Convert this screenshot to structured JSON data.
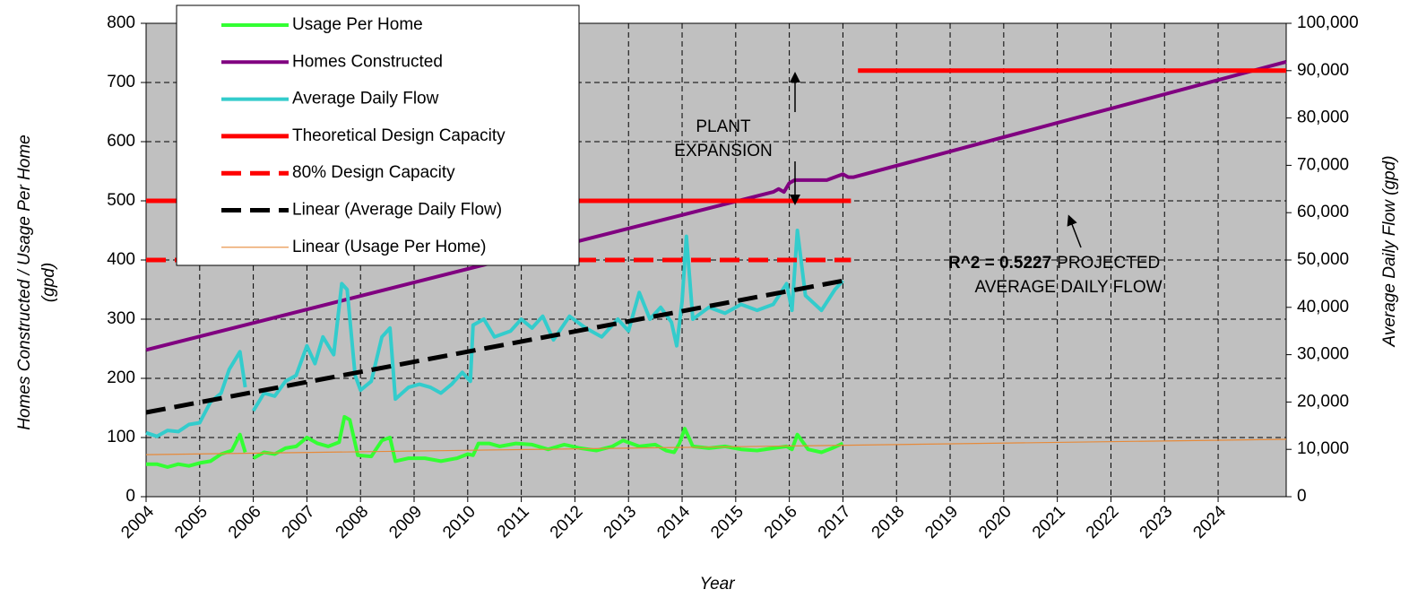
{
  "chart_data": {
    "type": "line",
    "x_label": "Year",
    "y_label": [
      "Homes Constructed / Usage Per Home",
      "(gpd)"
    ],
    "y2_label": "Average Daily Flow (gpd)",
    "xlim": [
      2004,
      2025.27
    ],
    "xticks": [
      2004,
      2005,
      2006,
      2007,
      2008,
      2009,
      2010,
      2011,
      2012,
      2013,
      2014,
      2015,
      2016,
      2017,
      2018,
      2019,
      2020,
      2021,
      2022,
      2023,
      2024
    ],
    "ylim": [
      0,
      800
    ],
    "yticks": [
      0,
      100,
      200,
      300,
      400,
      500,
      600,
      700,
      800
    ],
    "y2lim": [
      0,
      100000
    ],
    "y2ticks": [
      0,
      {
        "value": 10000,
        "label": "10,000"
      },
      {
        "value": 20000,
        "label": "20,000"
      },
      {
        "value": 30000,
        "label": "30,000"
      },
      {
        "value": 40000,
        "label": "40,000"
      },
      {
        "value": 50000,
        "label": "50,000"
      },
      {
        "value": 60000,
        "label": "60,000"
      },
      {
        "value": 70000,
        "label": "70,000"
      },
      {
        "value": 80000,
        "label": "80,000"
      },
      {
        "value": 90000,
        "label": "90,000"
      },
      {
        "value": 100000,
        "label": "100,000"
      }
    ],
    "grid": true,
    "background": "#c0c0c0",
    "legend": "upper left",
    "annotations": {
      "plant_expansion": [
        "PLANT",
        "EXPANSION"
      ],
      "r2": "R^2 = 0.5227",
      "projected": [
        "PROJECTED",
        "AVERAGE DAILY FLOW"
      ]
    },
    "series": [
      {
        "name": "Usage Per Home",
        "color": "#33ff33",
        "line_width": 4,
        "dashed": false,
        "x": [
          2004.0,
          2004.2,
          2004.4,
          2004.6,
          2004.8,
          2005.0,
          2005.2,
          2005.4,
          2005.6,
          2005.75,
          2005.85,
          2005.92,
          2006.0,
          2006.2,
          2006.4,
          2006.6,
          2006.8,
          2007.0,
          2007.2,
          2007.4,
          2007.6,
          2007.7,
          2007.8,
          2007.95,
          2008.2,
          2008.4,
          2008.55,
          2008.65,
          2008.9,
          2009.2,
          2009.5,
          2009.8,
          2010.0,
          2010.1,
          2010.2,
          2010.4,
          2010.6,
          2010.9,
          2011.2,
          2011.5,
          2011.8,
          2012.1,
          2012.4,
          2012.7,
          2012.9,
          2013.2,
          2013.5,
          2013.7,
          2013.85,
          2013.95,
          2014.05,
          2014.2,
          2014.5,
          2014.8,
          2015.1,
          2015.4,
          2015.7,
          2015.95,
          2016.05,
          2016.15,
          2016.35,
          2016.6,
          2016.8,
          2017.0
        ],
        "values": [
          55,
          55,
          50,
          55,
          52,
          57,
          60,
          72,
          78,
          105,
          75,
          null,
          65,
          75,
          72,
          82,
          85,
          100,
          90,
          85,
          92,
          135,
          130,
          70,
          68,
          95,
          100,
          60,
          65,
          65,
          60,
          65,
          72,
          70,
          90,
          90,
          85,
          90,
          88,
          80,
          88,
          82,
          78,
          85,
          95,
          85,
          88,
          78,
          75,
          90,
          115,
          85,
          82,
          85,
          80,
          78,
          82,
          85,
          80,
          105,
          80,
          75,
          82,
          90
        ]
      },
      {
        "name": "Homes Constructed",
        "color": "#800080",
        "line_width": 4,
        "dashed": false,
        "x": [
          2004,
          2012.2,
          2015.7,
          2015.8,
          2015.9,
          2016.0,
          2016.1,
          2016.7,
          2017.0,
          2017.1,
          2017.2,
          2025.27
        ],
        "values": [
          248,
          435,
          515,
          520,
          515,
          530,
          535,
          535,
          545,
          540,
          540,
          735
        ]
      },
      {
        "name": "Average Daily Flow",
        "color": "#33cccc",
        "line_width": 4,
        "dashed": false,
        "axis": "y2",
        "x": [
          2004.0,
          2004.2,
          2004.4,
          2004.6,
          2004.8,
          2005.0,
          2005.2,
          2005.4,
          2005.55,
          2005.75,
          2005.85,
          2005.92,
          2006.0,
          2006.2,
          2006.4,
          2006.6,
          2006.8,
          2007.0,
          2007.15,
          2007.3,
          2007.5,
          2007.65,
          2007.75,
          2007.9,
          2008.0,
          2008.2,
          2008.4,
          2008.55,
          2008.65,
          2008.9,
          2009.1,
          2009.3,
          2009.5,
          2009.7,
          2009.9,
          2010.05,
          2010.1,
          2010.3,
          2010.5,
          2010.8,
          2011.0,
          2011.2,
          2011.4,
          2011.6,
          2011.9,
          2012.2,
          2012.5,
          2012.8,
          2013.0,
          2013.2,
          2013.4,
          2013.6,
          2013.8,
          2013.9,
          2014.0,
          2014.08,
          2014.2,
          2014.5,
          2014.8,
          2015.1,
          2015.4,
          2015.7,
          2015.95,
          2016.05,
          2016.15,
          2016.3,
          2016.6,
          2016.85,
          2017.0
        ],
        "values": [
          13500,
          12750,
          14000,
          13750,
          15250,
          15625,
          20000,
          21875,
          26875,
          30625,
          23125,
          null,
          18125,
          21875,
          21250,
          24375,
          25625,
          31875,
          28125,
          33750,
          30000,
          45000,
          43750,
          25625,
          22500,
          24375,
          33750,
          35625,
          20625,
          23125,
          23750,
          23125,
          21875,
          23750,
          26250,
          24375,
          36250,
          37500,
          33750,
          35000,
          37500,
          35625,
          38125,
          33125,
          38125,
          35625,
          33750,
          37500,
          35000,
          43125,
          37500,
          40000,
          36875,
          31875,
          41250,
          55000,
          37500,
          40000,
          38750,
          40625,
          39375,
          40625,
          45000,
          39375,
          56250,
          42500,
          39375,
          43750,
          45625
        ]
      },
      {
        "name": "Theoretical Design Capacity",
        "color": "#ff0000",
        "line_width": 5,
        "dashed": false,
        "axis": "y2",
        "x": [
          2004,
          2017.15,
          2017.2,
          2017.28,
          2025.27
        ],
        "values": [
          62500,
          62500,
          null,
          90000,
          90000
        ]
      },
      {
        "name": "80% Design Capacity",
        "color": "#ff0000",
        "line_width": 5,
        "dashed": true,
        "axis": "y2",
        "x": [
          2004,
          2017.15
        ],
        "values": [
          50000,
          50000
        ]
      },
      {
        "name": "Linear (Average Daily Flow)",
        "color": "#000000",
        "line_width": 5,
        "dashed": true,
        "axis": "y2",
        "x": [
          2004,
          2017.0
        ],
        "values": [
          17800,
          45600
        ]
      },
      {
        "name": "Linear (Usage Per Home)",
        "color": "#e68a3a",
        "line_width": 1.2,
        "dashed": false,
        "x": [
          2004,
          2025.27
        ],
        "values": [
          71,
          97
        ]
      }
    ]
  }
}
